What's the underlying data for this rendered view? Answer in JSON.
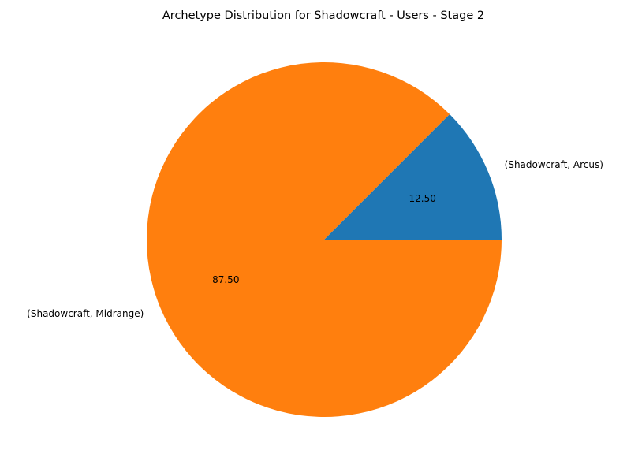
{
  "chart_data": {
    "type": "pie",
    "title": "Archetype Distribution for Shadowcraft - Users - Stage 2",
    "slices": [
      {
        "label": "(Shadowcraft, Arcus)",
        "value": 12.5,
        "display": "12.50",
        "color": "#1f77b4"
      },
      {
        "label": "(Shadowcraft, Midrange)",
        "value": 87.5,
        "display": "87.50",
        "color": "#ff7f0e"
      }
    ],
    "start_angle_deg": 0,
    "direction": "counterclockwise",
    "legend": "none"
  }
}
